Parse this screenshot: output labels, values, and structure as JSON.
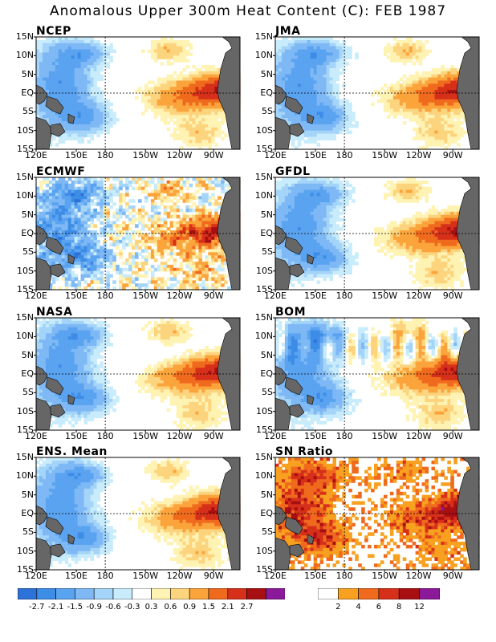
{
  "title": "Anomalous Upper 300m Heat Content (C): FEB 1987",
  "panels": [
    {
      "name": "NCEP",
      "style": "smooth"
    },
    {
      "name": "JMA",
      "style": "smooth"
    },
    {
      "name": "ECMWF",
      "style": "noisy"
    },
    {
      "name": "GFDL",
      "style": "smooth"
    },
    {
      "name": "NASA",
      "style": "smooth"
    },
    {
      "name": "BOM",
      "style": "banded"
    },
    {
      "name": "ENS. Mean",
      "style": "smooth"
    },
    {
      "name": "SN Ratio",
      "style": "snr"
    }
  ],
  "lat_labels": [
    "15N",
    "10N",
    "5N",
    "EQ",
    "5S",
    "10S",
    "15S"
  ],
  "lon_labels": [
    "120E",
    "150E",
    "180",
    "150W",
    "120W",
    "90W"
  ],
  "anomaly_colorbar": {
    "colors": [
      "#2d72d8",
      "#3d8ce6",
      "#5aa3f0",
      "#7eb8f5",
      "#a4d4f8",
      "#c8ecfb",
      "#ffffff",
      "#fff3b4",
      "#fdd47e",
      "#fba43c",
      "#f06a1e",
      "#d6301a",
      "#a80f12",
      "#8a1a9a"
    ],
    "labels": [
      "-2.7",
      "-2.1",
      "-1.5",
      "-0.9",
      "-0.6",
      "-0.3",
      "0.3",
      "0.6",
      "0.9",
      "1.5",
      "2.1",
      "2.7"
    ]
  },
  "snr_colorbar": {
    "colors": [
      "#ffffff",
      "#f8a020",
      "#f06a1e",
      "#d6301a",
      "#a80f12",
      "#8a1a9a"
    ],
    "labels": [
      "2",
      "4",
      "6",
      "8",
      "12"
    ]
  },
  "land_color": "#666666"
}
